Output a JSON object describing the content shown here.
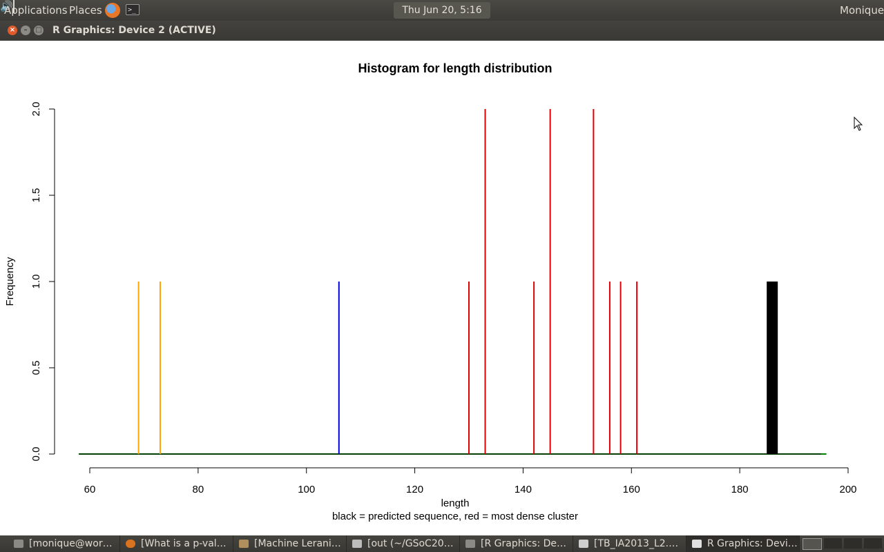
{
  "top_panel": {
    "applications_label": "Applications",
    "places_label": "Places",
    "clock": "Thu Jun 20,  5:16 PM",
    "user": "Monique",
    "terminal_glyph": ">_"
  },
  "window": {
    "title": "R Graphics: Device 2 (ACTIVE)"
  },
  "taskbar": {
    "tasks": [
      {
        "label": "[monique@wor…",
        "icon": "terminal-icon"
      },
      {
        "label": "[What is a p-val…",
        "icon": "firefox-icon"
      },
      {
        "label": "[Machine Lerani…",
        "icon": "folder-icon"
      },
      {
        "label": "[out (~/GSoC20…",
        "icon": "text-editor-icon"
      },
      {
        "label": "[R Graphics: De…",
        "icon": "window-icon"
      },
      {
        "label": "[TB_IA2013_L2.…",
        "icon": "document-icon"
      },
      {
        "label": "R Graphics: Devi…",
        "icon": "window-icon"
      }
    ]
  },
  "colors": {
    "predicted": "#000000",
    "dense_cluster": "#e00000",
    "outlier_orange": "#ffa500",
    "outlier_blue": "#0000cc",
    "baseline": "#008000"
  },
  "chart_data": {
    "type": "bar",
    "title": "Histogram for length distribution",
    "xlabel": "length",
    "subtitle": "black = predicted sequence, red = most dense cluster",
    "ylabel": "Frequency",
    "xlim": [
      60,
      200
    ],
    "ylim": [
      0,
      2
    ],
    "x_ticks": [
      "60",
      "80",
      "100",
      "120",
      "140",
      "160",
      "180",
      "200"
    ],
    "y_ticks": [
      "0.0",
      "0.5",
      "1.0",
      "1.5",
      "2.0"
    ],
    "grid": false,
    "bars": [
      {
        "x": 69,
        "y": 1,
        "color": "#ffa500"
      },
      {
        "x": 73,
        "y": 1,
        "color": "#ffa500"
      },
      {
        "x": 106,
        "y": 1,
        "color": "#0000cc"
      },
      {
        "x": 130,
        "y": 1,
        "color": "#e00000"
      },
      {
        "x": 133,
        "y": 2,
        "color": "#e00000"
      },
      {
        "x": 142,
        "y": 1,
        "color": "#e00000"
      },
      {
        "x": 145,
        "y": 2,
        "color": "#e00000"
      },
      {
        "x": 153,
        "y": 2,
        "color": "#e00000"
      },
      {
        "x": 156,
        "y": 1,
        "color": "#e00000"
      },
      {
        "x": 158,
        "y": 1,
        "color": "#e00000"
      },
      {
        "x": 161,
        "y": 1,
        "color": "#e00000"
      },
      {
        "x": 186,
        "y": 1,
        "color": "#000000",
        "thick": true
      }
    ],
    "baseline_range": [
      59,
      196
    ]
  }
}
